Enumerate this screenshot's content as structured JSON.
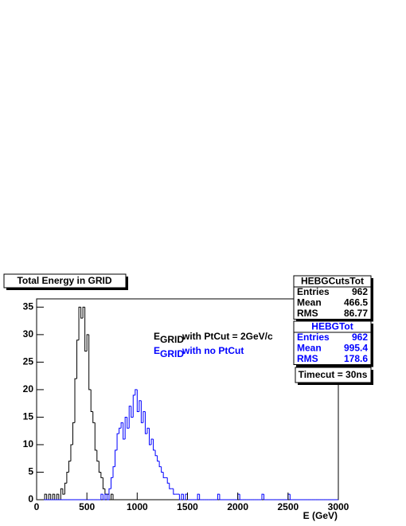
{
  "chart_data": {
    "type": "histogram",
    "title": "Total Energy in GRID",
    "x_label": "E (GeV)",
    "bins": [
      0,
      20,
      40,
      60,
      80,
      100,
      120,
      140,
      160,
      180,
      200,
      220,
      240,
      260,
      280,
      300,
      320,
      340,
      360,
      380,
      400,
      420,
      440,
      460,
      480,
      500,
      520,
      540,
      560,
      580,
      600,
      620,
      640,
      660,
      680,
      700,
      720,
      740,
      760,
      780,
      800,
      820,
      840,
      860,
      880,
      900,
      920,
      940,
      960,
      980,
      1000,
      1020,
      1040,
      1060,
      1080,
      1100,
      1120,
      1140,
      1160,
      1180,
      1200,
      1220,
      1240,
      1260,
      1280,
      1300,
      1320,
      1340,
      1360,
      1380,
      1400,
      1420,
      1440,
      1460,
      1480,
      1500,
      1520,
      1540,
      1560,
      1580,
      1600,
      1620,
      1640,
      1660,
      1680,
      1700,
      1720,
      1740,
      1760,
      1780,
      1800,
      1820,
      1840,
      1860,
      1880,
      1900,
      1920,
      1940,
      1960,
      1980,
      2000,
      2020,
      2040,
      2060,
      2080,
      2100,
      2120,
      2140,
      2160,
      2180,
      2200,
      2220,
      2240,
      2260,
      2280,
      2300,
      2320,
      2340,
      2360,
      2380,
      2400,
      2420,
      2440,
      2460,
      2480,
      2500,
      2520,
      2540,
      2560,
      2580,
      2600,
      2620,
      2640,
      2660,
      2680,
      2700,
      2720,
      2740,
      2760,
      2780,
      2800,
      2820,
      2840,
      2860,
      2880,
      2900,
      2920,
      2940,
      2960,
      2980,
      3000
    ],
    "legend_symbol": "E",
    "legend_subscript": "GRID",
    "series": [
      {
        "name": "with PtCut = 2GeV/c",
        "color": "#000000",
        "values": [
          0,
          0,
          0,
          0,
          1,
          0,
          1,
          0,
          1,
          0,
          1,
          0,
          2,
          1,
          3,
          5,
          7,
          10,
          14,
          22,
          29,
          35,
          33,
          35,
          27,
          30,
          20,
          16,
          14,
          9,
          7,
          5,
          4,
          2,
          1,
          1,
          0,
          1,
          0,
          0,
          0,
          0,
          0,
          0,
          0,
          0,
          0,
          0,
          0,
          0,
          0,
          0,
          0,
          0,
          0,
          0,
          0,
          0,
          0,
          0,
          0,
          0,
          0,
          0,
          0,
          0,
          0,
          0,
          0,
          0,
          0,
          0,
          0,
          0,
          0,
          0,
          0,
          0,
          0,
          0,
          0,
          0,
          0,
          0,
          0,
          0,
          0,
          0,
          0,
          0,
          0,
          0,
          0,
          0,
          0,
          0,
          0,
          0,
          0,
          0,
          0,
          0,
          0,
          0,
          0,
          0,
          0,
          0,
          0,
          0,
          0,
          0,
          0,
          0,
          0,
          0,
          0,
          0,
          0,
          0,
          0,
          0,
          0,
          0,
          0,
          0,
          0,
          0,
          0,
          0,
          0,
          0,
          0,
          0,
          0,
          0,
          0,
          0,
          0,
          0,
          0,
          0,
          0,
          0,
          0,
          0,
          0,
          0,
          0,
          0
        ]
      },
      {
        "name": "with no PtCut",
        "color": "#0000ff",
        "values": [
          0,
          0,
          0,
          0,
          0,
          0,
          0,
          0,
          0,
          0,
          0,
          0,
          0,
          0,
          0,
          0,
          0,
          0,
          0,
          0,
          0,
          0,
          0,
          0,
          0,
          0,
          0,
          0,
          0,
          0,
          0,
          0,
          1,
          0,
          1,
          0,
          2,
          4,
          6,
          9,
          12,
          13,
          14,
          11,
          15,
          13,
          17,
          15,
          19,
          20,
          16,
          18,
          14,
          16,
          12,
          13,
          10,
          11,
          9,
          8,
          7,
          6,
          5,
          4,
          4,
          3,
          2,
          2,
          1,
          1,
          1,
          0,
          1,
          0,
          1,
          0,
          0,
          0,
          0,
          0,
          1,
          0,
          0,
          0,
          0,
          0,
          0,
          0,
          0,
          0,
          1,
          0,
          0,
          0,
          0,
          0,
          0,
          0,
          0,
          0,
          1,
          0,
          0,
          0,
          0,
          0,
          0,
          0,
          0,
          0,
          0,
          0,
          1,
          0,
          0,
          0,
          0,
          0,
          0,
          0,
          0,
          0,
          0,
          0,
          0,
          1,
          0,
          0,
          0,
          0,
          0,
          0,
          0,
          0,
          0,
          0,
          0,
          0,
          0,
          0,
          0,
          0,
          0,
          0,
          0,
          0,
          0,
          0,
          0,
          0
        ]
      }
    ],
    "xlim": [
      0,
      3000
    ],
    "xticks": [
      0,
      500,
      1000,
      1500,
      2000,
      2500,
      3000
    ],
    "ylim": [
      0,
      36.5
    ],
    "yticks": [
      0,
      5,
      10,
      15,
      20,
      25,
      30,
      35
    ],
    "stats": [
      {
        "title": "HEBGCutsTot",
        "color": "#000000",
        "rows": [
          {
            "label": "Entries",
            "value": 962
          },
          {
            "label": "Mean",
            "value": 466.5
          },
          {
            "label": "RMS",
            "value": 86.77
          }
        ]
      },
      {
        "title": "HEBGTot",
        "color": "#0000ff",
        "rows": [
          {
            "label": "Entries",
            "value": 962
          },
          {
            "label": "Mean",
            "value": 995.4
          },
          {
            "label": "RMS",
            "value": 178.6
          }
        ]
      }
    ],
    "note": "Timecut = 30ns"
  }
}
